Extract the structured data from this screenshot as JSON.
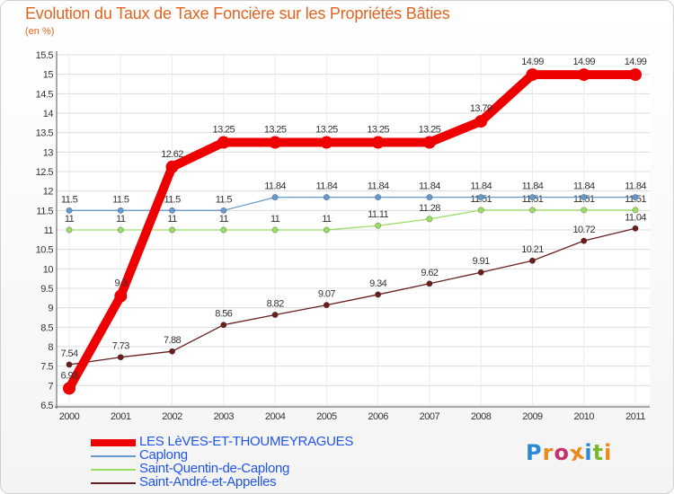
{
  "chart_data": {
    "type": "line",
    "title": "Evolution du Taux de Taxe Foncière sur les Propriétés Bâties",
    "unit_label": "(en %)",
    "x": [
      "2000",
      "2001",
      "2002",
      "2003",
      "2004",
      "2005",
      "2006",
      "2007",
      "2008",
      "2009",
      "2010",
      "2011"
    ],
    "ylim": [
      6.5,
      15.5
    ],
    "yticks": [
      "6.5",
      "7",
      "7.5",
      "8",
      "8.5",
      "9",
      "9.5",
      "10",
      "10.5",
      "11",
      "11.5",
      "12",
      "12.5",
      "13",
      "13.5",
      "14",
      "14.5",
      "15",
      "15.5"
    ],
    "grid": true,
    "legend_position": "bottom-left",
    "series": [
      {
        "name": "Saint-André-et-Appelles",
        "color": "#6a1f1f",
        "values": [
          7.54,
          7.73,
          7.88,
          8.56,
          8.82,
          9.07,
          9.34,
          9.62,
          9.91,
          10.21,
          10.72,
          11.04
        ],
        "labels": [
          "7.54",
          "7.73",
          "7.88",
          "8.56",
          "8.82",
          "9.07",
          "9.34",
          "9.62",
          "9.91",
          "10.21",
          "10.72",
          "11.04"
        ]
      },
      {
        "name": "Saint-Quentin-de-Caplong",
        "color": "#99dd66",
        "values": [
          11,
          11,
          11,
          11,
          11,
          11,
          11.11,
          11.28,
          11.51,
          11.51,
          11.51,
          11.51
        ],
        "labels": [
          "11",
          "11",
          "11",
          "11",
          "11",
          "11",
          "11.11",
          "11.28",
          "11.51",
          "11.51",
          "11.51",
          "11.51"
        ]
      },
      {
        "name": "Caplong",
        "color": "#6699cc",
        "values": [
          11.5,
          11.5,
          11.5,
          11.5,
          11.84,
          11.84,
          11.84,
          11.84,
          11.84,
          11.84,
          11.84,
          11.84
        ],
        "labels": [
          "11.5",
          "11.5",
          "11.5",
          "11.5",
          "11.84",
          "11.84",
          "11.84",
          "11.84",
          "11.84",
          "11.84",
          "11.84",
          "11.84"
        ]
      },
      {
        "name": "LES LèVES-ET-THOUMEYRAGUES",
        "color": "#ee0000",
        "values": [
          6.93,
          9.3,
          12.62,
          13.25,
          13.25,
          13.25,
          13.25,
          13.25,
          13.79,
          14.99,
          14.99,
          14.99
        ],
        "labels": [
          "6.93",
          "9.3",
          "12.62",
          "13.25",
          "13.25",
          "13.25",
          "13.25",
          "13.25",
          "13.79",
          "14.99",
          "14.99",
          "14.99"
        ]
      }
    ]
  },
  "legend": [
    {
      "label": "LES LèVES-ET-THOUMEYRAGUES",
      "color": "#ee0000"
    },
    {
      "label": "Caplong",
      "color": "#6699cc"
    },
    {
      "label": "Saint-Quentin-de-Caplong",
      "color": "#99dd66"
    },
    {
      "label": "Saint-André-et-Appelles",
      "color": "#6a1f1f"
    }
  ],
  "logo": {
    "letters": [
      "P",
      "r",
      "o",
      "x",
      "i",
      "t",
      "i"
    ],
    "colors": [
      "#2a8ad6",
      "#e98a1c",
      "#c7306b",
      "#e98a1c",
      "#2a8ad6",
      "#7ab82e",
      "#e98a1c"
    ]
  }
}
